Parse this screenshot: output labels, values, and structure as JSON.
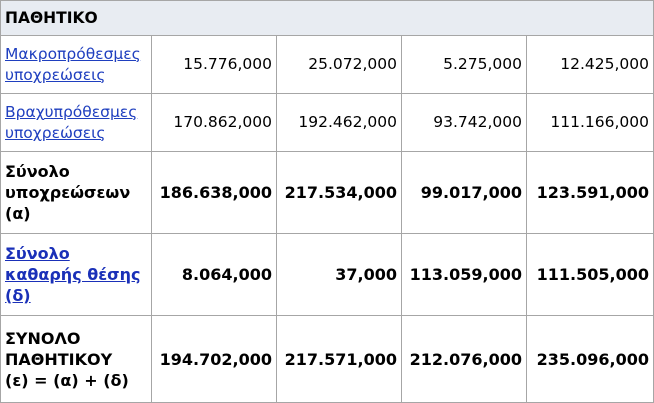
{
  "section_title": "ΠΑΘΗΤΙΚΟ",
  "rows": [
    {
      "label": "Μακροπρόθεσμες\nυποχρεώσεις",
      "values": [
        "15.776,000",
        "25.072,000",
        "5.275,000",
        "12.425,000"
      ]
    },
    {
      "label": "Βραχυπρόθεσμες\nυποχρεώσεις",
      "values": [
        "170.862,000",
        "192.462,000",
        "93.742,000",
        "111.166,000"
      ]
    },
    {
      "label": "Σύνολο\nυποχρεώσεων\n(α)",
      "values": [
        "186.638,000",
        "217.534,000",
        "99.017,000",
        "123.591,000"
      ]
    },
    {
      "label": "Σύνολο\nκαθαρής θέσης\n(δ)",
      "values": [
        "8.064,000",
        "37,000",
        "113.059,000",
        "111.505,000"
      ]
    },
    {
      "label": "ΣΥΝΟΛΟ\nΠΑΘΗΤΙΚΟΥ\n(ε) = (α) + (δ)",
      "values": [
        "194.702,000",
        "217.571,000",
        "212.076,000",
        "235.096,000"
      ]
    }
  ],
  "colors": {
    "header_background": "#e8ecf2",
    "link": "#1f3fbf",
    "border": "#a6a6a6"
  }
}
